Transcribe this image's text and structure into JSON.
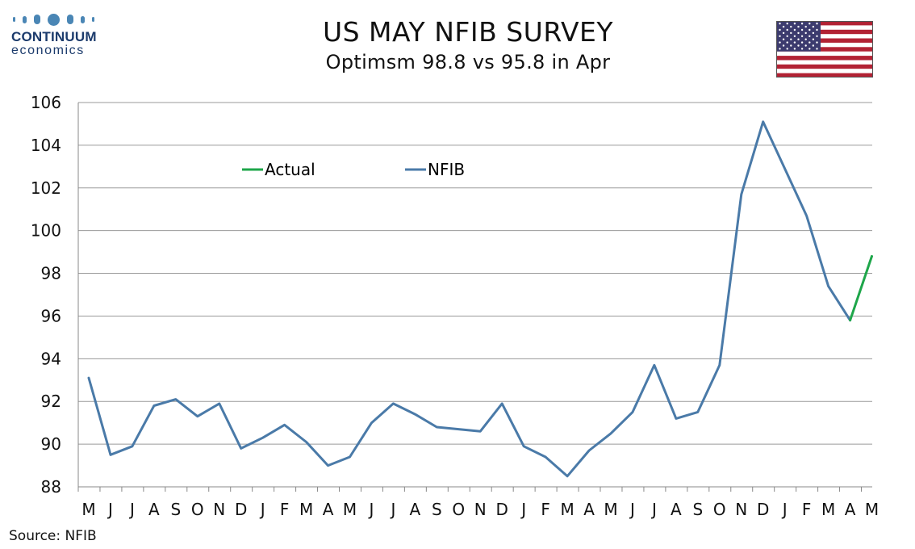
{
  "logo": {
    "name": "CONTINUUM",
    "sub": "economics"
  },
  "title": "US MAY NFIB SURVEY",
  "subtitle": "Optimsm 98.8 vs 95.8 in Apr",
  "source": "Source: NFIB",
  "flag": {
    "icon": "us-flag-icon"
  },
  "colors": {
    "nfib": "#4a7aa8",
    "actual": "#1ea64a",
    "grid": "#9a9a9a",
    "axis": "#888888"
  },
  "chart_data": {
    "type": "line",
    "categories": [
      "M",
      "J",
      "J",
      "A",
      "S",
      "O",
      "N",
      "D",
      "J",
      "F",
      "M",
      "A",
      "M",
      "J",
      "J",
      "A",
      "S",
      "O",
      "N",
      "D",
      "J",
      "F",
      "M",
      "A",
      "M",
      "J",
      "J",
      "A",
      "S",
      "O",
      "N",
      "D",
      "J",
      "F",
      "M",
      "A",
      "M"
    ],
    "ylim": [
      88,
      106
    ],
    "yticks": [
      88,
      90,
      92,
      94,
      96,
      98,
      100,
      102,
      104,
      106
    ],
    "grid": true,
    "legend_position": "top-left",
    "series": [
      {
        "name": "NFIB",
        "color": "#4a7aa8",
        "values": [
          93.1,
          89.5,
          89.9,
          91.8,
          92.1,
          91.3,
          91.9,
          89.8,
          90.3,
          90.9,
          90.1,
          89.0,
          89.4,
          91.0,
          91.9,
          91.4,
          90.8,
          90.7,
          90.6,
          91.9,
          89.9,
          89.4,
          88.5,
          89.7,
          90.5,
          91.5,
          93.7,
          91.2,
          91.5,
          93.7,
          101.7,
          105.1,
          102.9,
          100.7,
          97.4,
          95.8,
          null
        ]
      },
      {
        "name": "Actual",
        "color": "#1ea64a",
        "values": [
          null,
          null,
          null,
          null,
          null,
          null,
          null,
          null,
          null,
          null,
          null,
          null,
          null,
          null,
          null,
          null,
          null,
          null,
          null,
          null,
          null,
          null,
          null,
          null,
          null,
          null,
          null,
          null,
          null,
          null,
          null,
          null,
          null,
          null,
          null,
          95.8,
          98.8
        ]
      }
    ]
  }
}
